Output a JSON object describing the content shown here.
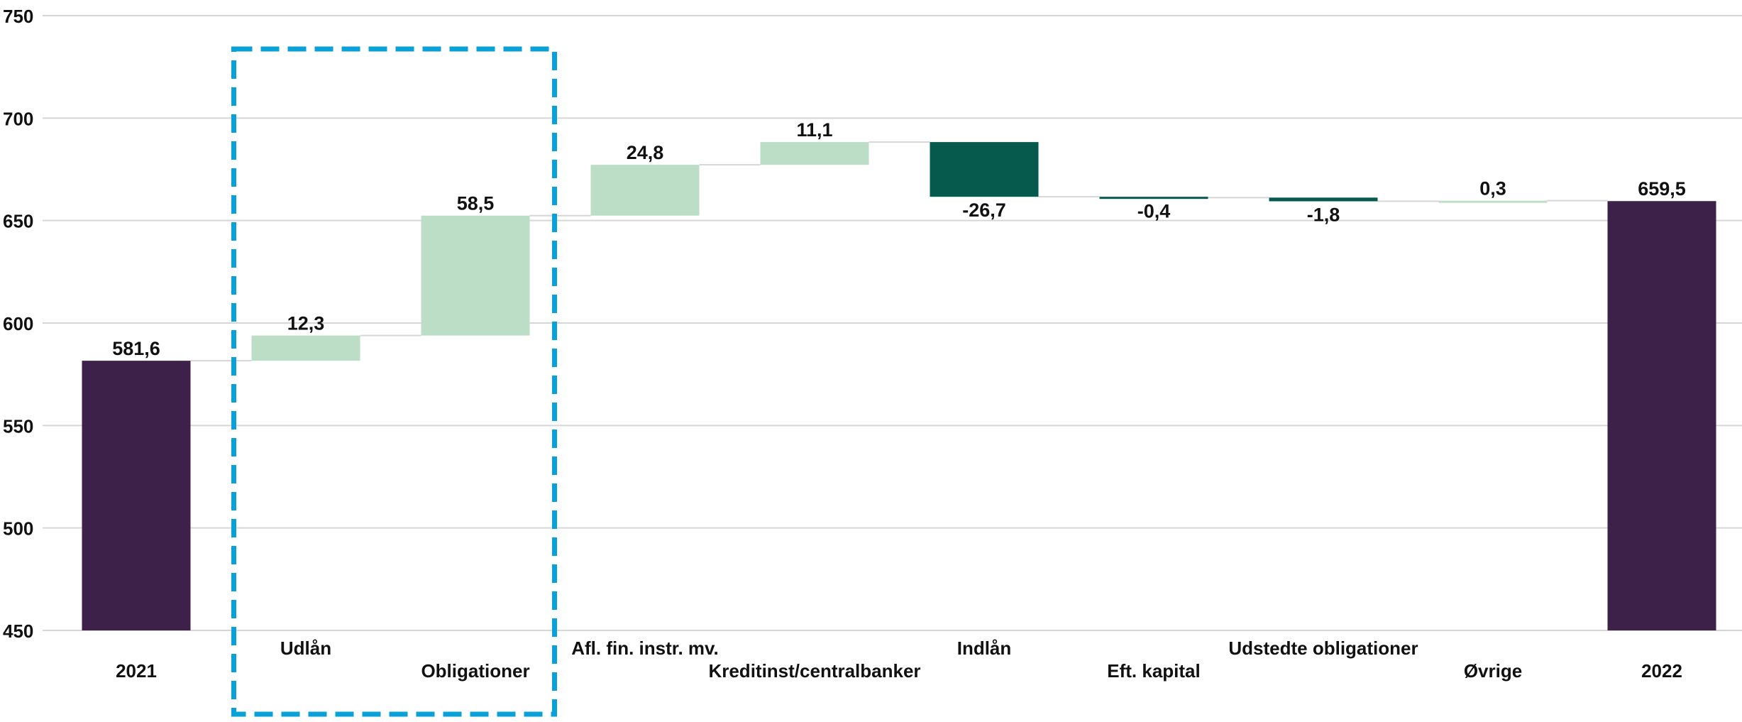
{
  "chart_data": {
    "type": "waterfall",
    "title": "",
    "xlabel": "",
    "ylabel": "",
    "ylim": [
      450,
      750
    ],
    "yticks": [
      450,
      500,
      550,
      600,
      650,
      700,
      750
    ],
    "ytick_labels": [
      "450",
      "500",
      "550",
      "600",
      "650",
      "700",
      "750"
    ],
    "grid": true,
    "categories": [
      "2021",
      "Udlån",
      "Obligationer",
      "Afl. fin. instr. mv.",
      "Kreditinst/centralbanker",
      "Indlån",
      "Eft. kapital",
      "Udstedte obligationer",
      "Øvrige",
      "2022"
    ],
    "values": [
      581.6,
      12.3,
      58.5,
      24.8,
      11.1,
      -26.7,
      -0.4,
      -1.8,
      0.3,
      659.5
    ],
    "value_labels": [
      "581,6",
      "12,3",
      "58,5",
      "24,8",
      "11,1",
      "-26,7",
      "-0,4",
      "-1,8",
      "0,3",
      "659,5"
    ],
    "kinds": [
      "total",
      "delta",
      "delta",
      "delta",
      "delta",
      "delta",
      "delta",
      "delta",
      "delta",
      "total"
    ],
    "highlight": {
      "categories": [
        "Udlån",
        "Obligationer"
      ],
      "style": "dashed-box"
    },
    "colors": {
      "total": "#3e2149",
      "increase": "#bddec6",
      "decrease": "#055a4d",
      "highlight": "#0aa0d8",
      "grid": "#d6d6d6",
      "connector": "#d6d6d6",
      "text": "#111111"
    }
  }
}
